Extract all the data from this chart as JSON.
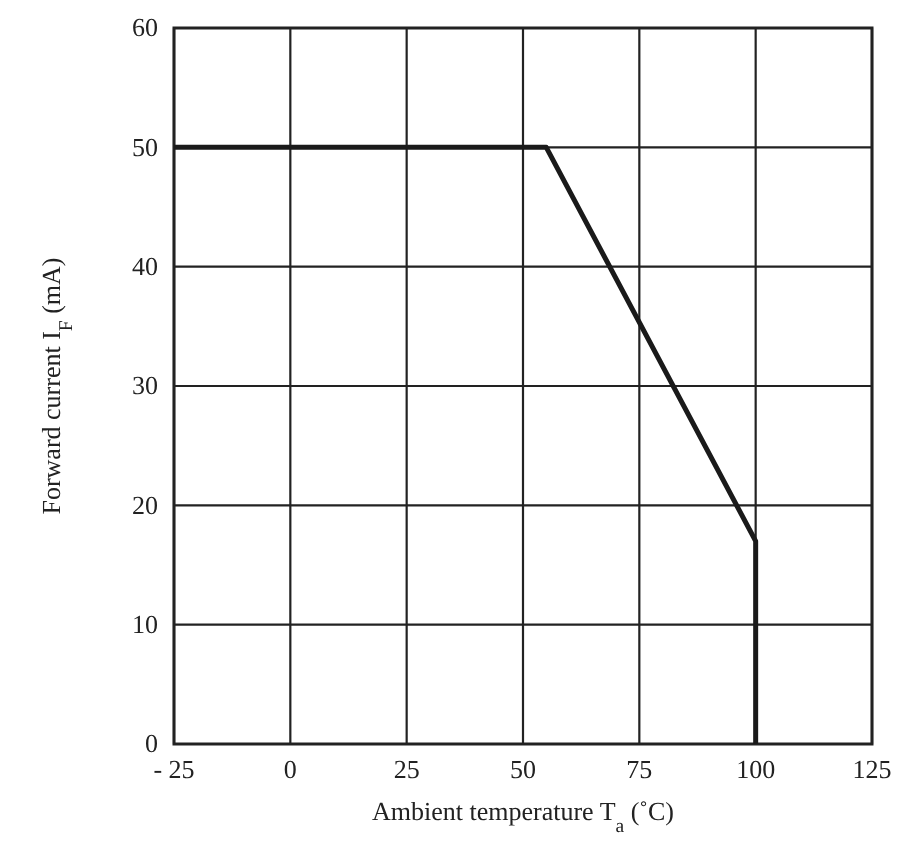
{
  "chart_data": {
    "type": "line",
    "xlabel": "Ambient temperature T$_{a}$ (˚C)",
    "ylabel": "Forward current I$_{F}$ (mA)",
    "x": [
      -25,
      55,
      100,
      100
    ],
    "series": [
      {
        "color": "#1a1a1a",
        "values": [
          50,
          50,
          17,
          0
        ]
      }
    ],
    "xlim": [
      -25,
      125
    ],
    "xticks": [
      {
        "value": -25,
        "label": "- 25"
      },
      0,
      25,
      50,
      75,
      100,
      125
    ],
    "ylim": [
      0,
      60
    ],
    "yticks": [
      0,
      10,
      20,
      30,
      40,
      50,
      60
    ],
    "grid": true,
    "marker": "none",
    "line_style": "solid"
  }
}
